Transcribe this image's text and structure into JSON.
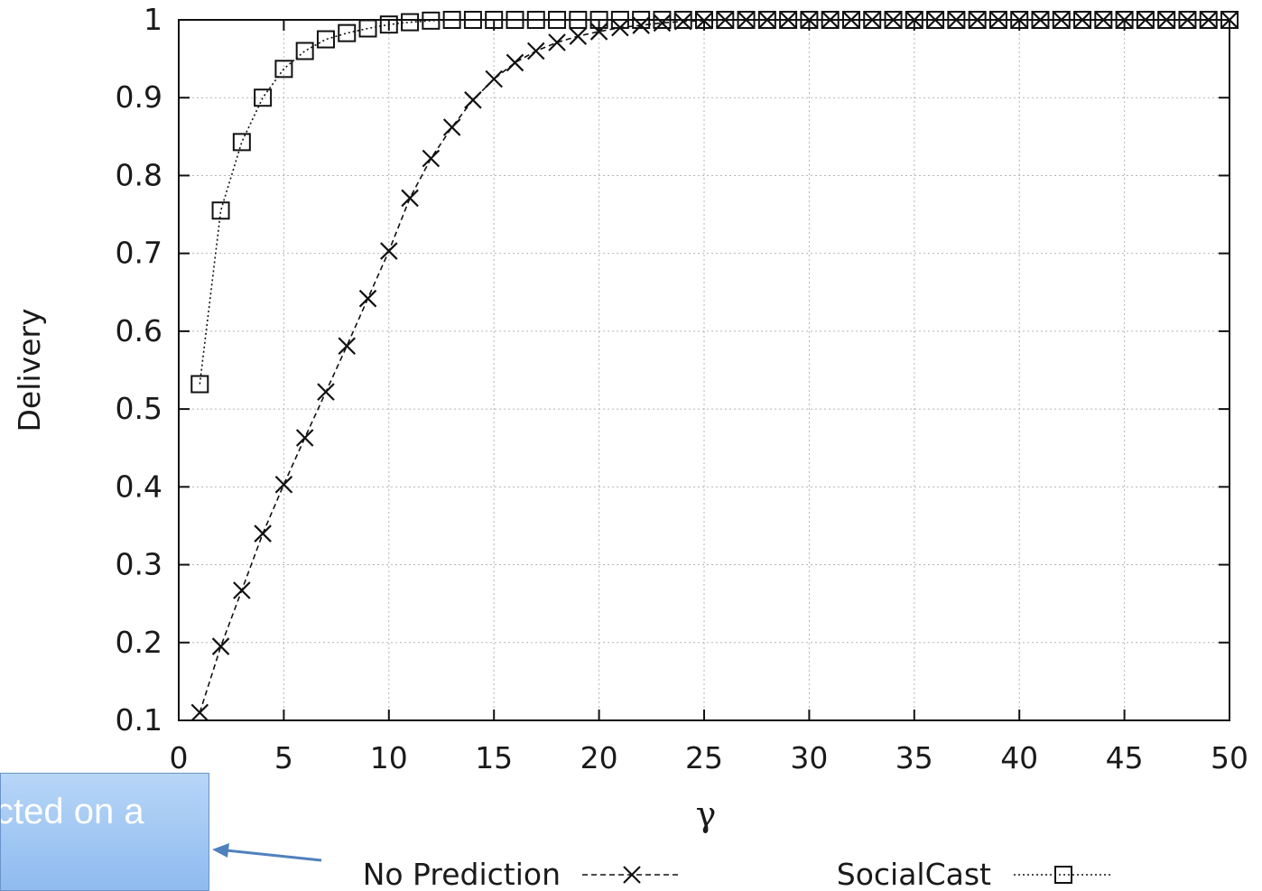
{
  "chart_data": {
    "type": "line",
    "xlabel": "γ",
    "ylabel": "Delivery",
    "xlim": [
      0,
      50
    ],
    "ylim": [
      0.1,
      1
    ],
    "xticks": [
      "0",
      "5",
      "10",
      "15",
      "20",
      "25",
      "30",
      "35",
      "40",
      "45",
      "50"
    ],
    "yticks": [
      "0.1",
      "0.2",
      "0.3",
      "0.4",
      "0.5",
      "0.6",
      "0.7",
      "0.8",
      "0.9",
      "1"
    ],
    "grid": true,
    "legend_position": "bottom",
    "series": [
      {
        "name": "No Prediction",
        "marker": "x",
        "line_style": "dashed",
        "x": [
          1,
          2,
          3,
          4,
          5,
          6,
          7,
          8,
          9,
          10,
          11,
          12,
          13,
          14,
          15,
          16,
          17,
          18,
          19,
          20,
          21,
          22,
          23,
          24,
          25,
          26,
          27,
          28,
          29,
          30,
          31,
          32,
          33,
          34,
          35,
          36,
          37,
          38,
          39,
          40,
          41,
          42,
          43,
          44,
          45,
          46,
          47,
          48,
          49,
          50
        ],
        "y": [
          0.11,
          0.195,
          0.267,
          0.34,
          0.403,
          0.463,
          0.522,
          0.581,
          0.642,
          0.703,
          0.771,
          0.822,
          0.862,
          0.897,
          0.924,
          0.945,
          0.96,
          0.971,
          0.979,
          0.985,
          0.99,
          0.993,
          0.996,
          0.998,
          0.999,
          1,
          1,
          1,
          1,
          1,
          1,
          1,
          1,
          1,
          1,
          1,
          1,
          1,
          1,
          1,
          1,
          1,
          1,
          1,
          1,
          1,
          1,
          1,
          1,
          1
        ]
      },
      {
        "name": "SocialCast",
        "marker": "square",
        "line_style": "dotted",
        "x": [
          1,
          2,
          3,
          4,
          5,
          6,
          7,
          8,
          9,
          10,
          11,
          12,
          13,
          14,
          15,
          16,
          17,
          18,
          19,
          20,
          21,
          22,
          23,
          24,
          25,
          26,
          27,
          28,
          29,
          30,
          31,
          32,
          33,
          34,
          35,
          36,
          37,
          38,
          39,
          40,
          41,
          42,
          43,
          44,
          45,
          46,
          47,
          48,
          49,
          50
        ],
        "y": [
          0.532,
          0.755,
          0.843,
          0.9,
          0.937,
          0.96,
          0.975,
          0.983,
          0.989,
          0.994,
          0.997,
          0.999,
          1,
          1,
          1,
          1,
          1,
          1,
          1,
          1,
          1,
          1,
          1,
          1,
          1,
          1,
          1,
          1,
          1,
          1,
          1,
          1,
          1,
          1,
          1,
          1,
          1,
          1,
          1,
          1,
          1,
          1,
          1,
          1,
          1,
          1,
          1,
          1,
          1,
          1
        ]
      }
    ]
  },
  "callout": {
    "text": "cted on a"
  }
}
